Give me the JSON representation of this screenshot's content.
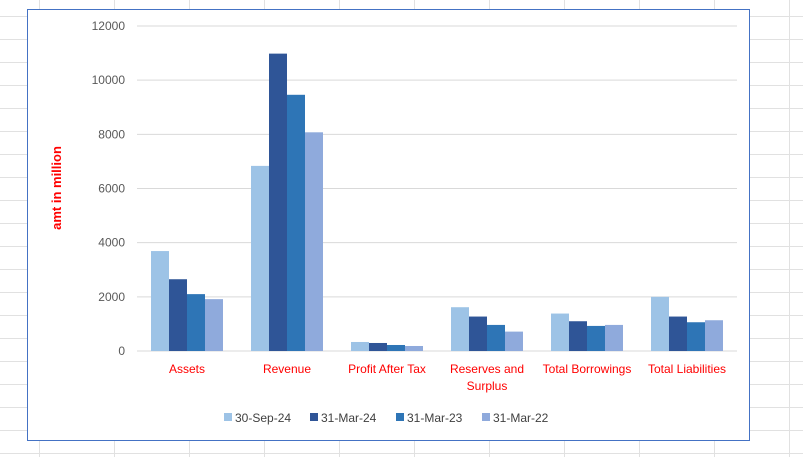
{
  "chart_data": {
    "type": "bar",
    "title": "",
    "xlabel": "",
    "ylabel": "amt in million",
    "ylim": [
      0,
      12000
    ],
    "yticks": [
      "0",
      "2000",
      "4000",
      "6000",
      "8000",
      "10000",
      "12000"
    ],
    "grid": true,
    "legend_position": "bottom",
    "categories": [
      [
        "Assets"
      ],
      [
        "Revenue"
      ],
      [
        "Profit After Tax"
      ],
      [
        "Reserves and",
        "Surplus"
      ],
      [
        "Total Borrowings"
      ],
      [
        "Total Liabilities"
      ]
    ],
    "series": [
      {
        "name": "30-Sep-24",
        "color": "#9dc3e6",
        "values": [
          3690,
          6835,
          333,
          1617,
          1383,
          2000
        ]
      },
      {
        "name": "31-Mar-24",
        "color": "#2f5597",
        "values": [
          2650,
          10980,
          296,
          1272,
          1099,
          1272
        ]
      },
      {
        "name": "31-Mar-23",
        "color": "#2e75b6",
        "values": [
          2100,
          9460,
          222,
          963,
          926,
          1062
        ]
      },
      {
        "name": "31-Mar-22",
        "color": "#8faadc",
        "values": [
          1915,
          8075,
          185,
          716,
          963,
          1136
        ]
      }
    ]
  }
}
